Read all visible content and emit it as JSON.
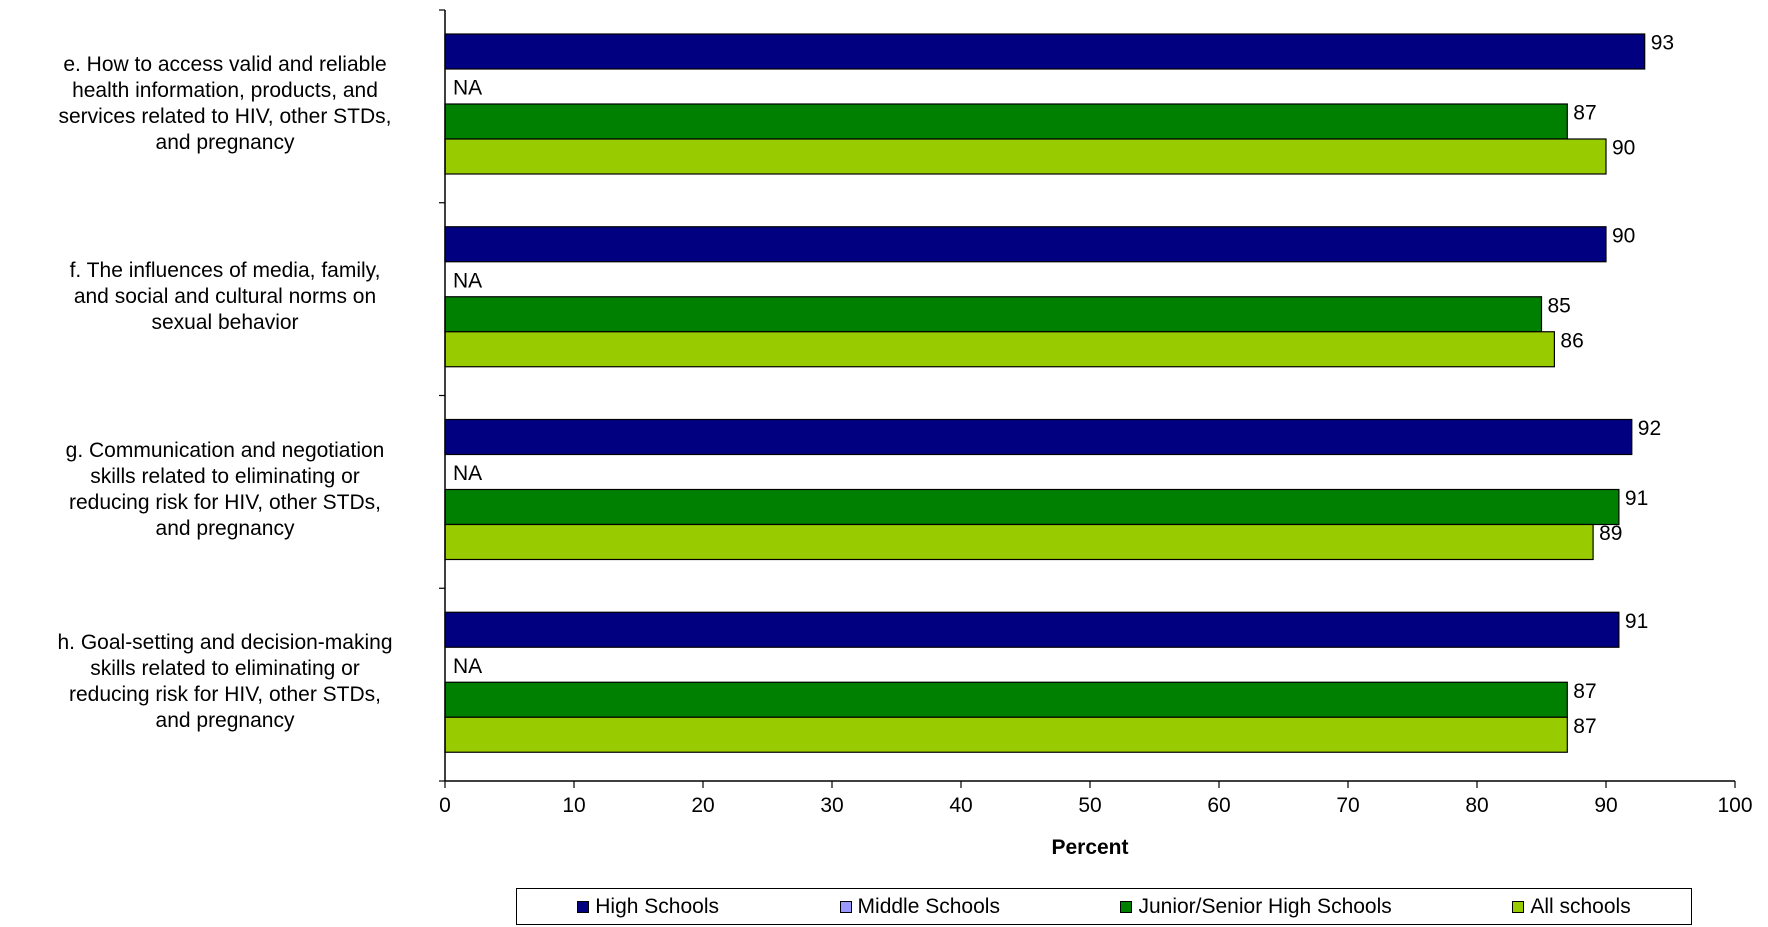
{
  "chart_data": {
    "type": "bar",
    "orientation": "horizontal",
    "xlabel": "Percent",
    "xlim": [
      0,
      100
    ],
    "xticks": [
      "0",
      "10",
      "20",
      "30",
      "40",
      "50",
      "60",
      "70",
      "80",
      "90",
      "100"
    ],
    "categories": [
      "e. How to access valid and reliable\nhealth information, products, and\nservices related to HIV, other STDs,\nand pregnancy",
      "f. The influences of media, family,\nand social and cultural norms on\nsexual behavior",
      "g. Communication and negotiation\nskills related  to eliminating or\nreducing risk for HIV, other STDs,\nand pregnancy",
      "h. Goal-setting and decision-making\nskills related to eliminating or\nreducing risk for HIV, other STDs,\nand pregnancy"
    ],
    "series": [
      {
        "name": "High Schools",
        "color": "#000080",
        "values": [
          93,
          90,
          92,
          91
        ]
      },
      {
        "name": "Middle Schools",
        "color": "#9999FF",
        "values": [
          null,
          null,
          null,
          null
        ],
        "missing_label": "NA"
      },
      {
        "name": "Junior/Senior High Schools",
        "color": "#008000",
        "values": [
          87,
          85,
          91,
          87
        ]
      },
      {
        "name": "All schools",
        "color": "#99CC00",
        "values": [
          90,
          86,
          89,
          87
        ]
      }
    ],
    "legend_position": "bottom",
    "grid": false
  }
}
